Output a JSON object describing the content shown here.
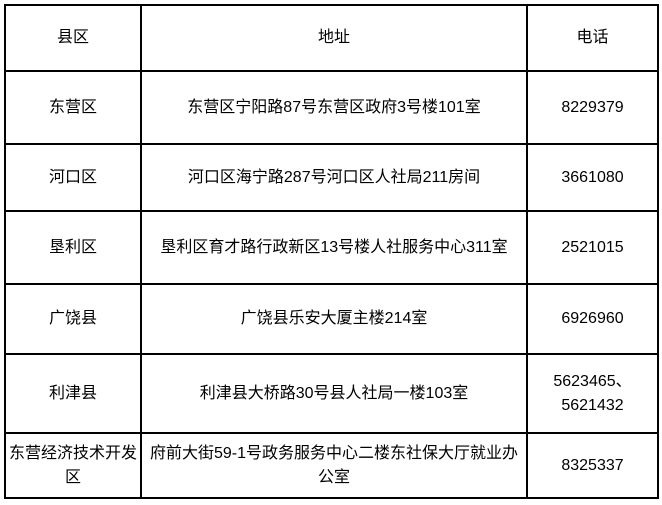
{
  "table": {
    "headers": [
      "县区",
      "地址",
      "电话"
    ],
    "rows": [
      {
        "district": "东营区",
        "address": "东营区宁阳路87号东营区政府3号楼101室",
        "phone": "8229379"
      },
      {
        "district": "河口区",
        "address": "河口区海宁路287号河口区人社局211房间",
        "phone": "3661080"
      },
      {
        "district": "垦利区",
        "address": "垦利区育才路行政新区13号楼人社服务中心311室",
        "phone": "2521015"
      },
      {
        "district": "广饶县",
        "address": "广饶县乐安大厦主楼214室",
        "phone": "6926960"
      },
      {
        "district": "利津县",
        "address": "利津县大桥路30号县人社局一楼103室",
        "phone": "5623465、5621432"
      },
      {
        "district": "东营经济技术开发区",
        "address": "府前大街59-1号政务服务中心二楼东社保大厅就业办公室",
        "phone": "8325337"
      }
    ],
    "colors": {
      "border": "#000000",
      "text": "#000000",
      "background": "#ffffff"
    }
  }
}
